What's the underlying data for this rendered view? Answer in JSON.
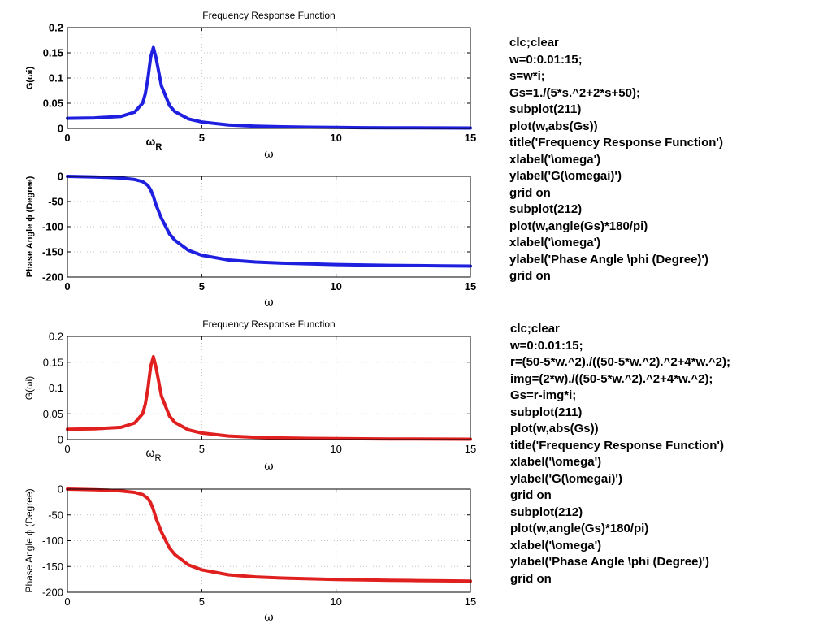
{
  "chart_data": [
    {
      "type": "line",
      "title": "Frequency Response Function",
      "xlabel": "ω",
      "ylabel": "G(ωi)",
      "xlim": [
        0,
        15
      ],
      "ylim": [
        0,
        0.2
      ],
      "xticks": [
        "0",
        "5",
        "10",
        "15"
      ],
      "yticks": [
        "0",
        "0.05",
        "0.1",
        "0.15",
        "0.2"
      ],
      "annotation": "ωR",
      "grid": true,
      "color": "#1f1fe0",
      "series": [
        {
          "x": [
            0,
            1,
            2,
            2.5,
            2.8,
            2.9,
            3.0,
            3.05,
            3.1,
            3.2,
            3.3,
            3.5,
            3.8,
            4.0,
            4.5,
            5,
            6,
            7,
            8,
            9,
            10,
            11,
            12,
            13,
            14,
            15
          ],
          "values": [
            0.02,
            0.0208,
            0.0238,
            0.0322,
            0.0501,
            0.0688,
            0.1,
            0.122,
            0.1413,
            0.1605,
            0.1398,
            0.0845,
            0.0453,
            0.0333,
            0.0189,
            0.0127,
            0.0069,
            0.0045,
            0.0032,
            0.0024,
            0.0019,
            0.0015,
            0.0013,
            0.0011,
            0.0009,
            0.0008
          ]
        }
      ]
    },
    {
      "type": "line",
      "title": "",
      "xlabel": "ω",
      "ylabel": "Phase Angle ϕ (Degree)",
      "xlim": [
        0,
        15
      ],
      "ylim": [
        -200,
        0
      ],
      "xticks": [
        "0",
        "5",
        "10",
        "15"
      ],
      "yticks": [
        "0",
        "-50",
        "-100",
        "-150",
        "-200"
      ],
      "grid": true,
      "color": "#1f1fe0",
      "series": [
        {
          "x": [
            0,
            0.5,
            1,
            1.5,
            2,
            2.5,
            2.8,
            3.0,
            3.1,
            3.2,
            3.3,
            3.5,
            3.8,
            4,
            4.5,
            5,
            6,
            7,
            8,
            9,
            10,
            11,
            12,
            13,
            14,
            15
          ],
          "values": [
            0,
            -0.6,
            -1.3,
            -2.1,
            -3.4,
            -6.3,
            -10.5,
            -18.4,
            -26.9,
            -39.8,
            -56.7,
            -83.2,
            -114.3,
            -126.9,
            -146.8,
            -156.6,
            -166.1,
            -170.2,
            -172.5,
            -173.9,
            -175.1,
            -175.9,
            -176.7,
            -177.3,
            -177.8,
            -178.2
          ]
        }
      ]
    },
    {
      "type": "line",
      "title": "Frequency Response Function",
      "xlabel": "ω",
      "ylabel": "G(ωi)",
      "xlim": [
        0,
        15
      ],
      "ylim": [
        0,
        0.2
      ],
      "xticks": [
        "0",
        "5",
        "10",
        "15"
      ],
      "yticks": [
        "0",
        "0.05",
        "0.1",
        "0.15",
        "0.2"
      ],
      "annotation": "ωR",
      "grid": true,
      "color": "#e01f1f",
      "series": [
        {
          "x": [
            0,
            1,
            2,
            2.5,
            2.8,
            2.9,
            3.0,
            3.05,
            3.1,
            3.2,
            3.3,
            3.5,
            3.8,
            4.0,
            4.5,
            5,
            6,
            7,
            8,
            9,
            10,
            11,
            12,
            13,
            14,
            15
          ],
          "values": [
            0.02,
            0.0208,
            0.0238,
            0.0322,
            0.0501,
            0.0688,
            0.1,
            0.122,
            0.1413,
            0.1605,
            0.1398,
            0.0845,
            0.0453,
            0.0333,
            0.0189,
            0.0127,
            0.0069,
            0.0045,
            0.0032,
            0.0024,
            0.0019,
            0.0015,
            0.0013,
            0.0011,
            0.0009,
            0.0008
          ]
        }
      ]
    },
    {
      "type": "line",
      "title": "",
      "xlabel": "ω",
      "ylabel": "Phase Angle ϕ (Degree)",
      "xlim": [
        0,
        15
      ],
      "ylim": [
        -200,
        0
      ],
      "xticks": [
        "0",
        "5",
        "10",
        "15"
      ],
      "yticks": [
        "0",
        "-50",
        "-100",
        "-150",
        "-200"
      ],
      "grid": true,
      "color": "#e01f1f",
      "series": [
        {
          "x": [
            0,
            0.5,
            1,
            1.5,
            2,
            2.5,
            2.8,
            3.0,
            3.1,
            3.2,
            3.3,
            3.5,
            3.8,
            4,
            4.5,
            5,
            6,
            7,
            8,
            9,
            10,
            11,
            12,
            13,
            14,
            15
          ],
          "values": [
            0,
            -0.6,
            -1.3,
            -2.1,
            -3.4,
            -6.3,
            -10.5,
            -18.4,
            -26.9,
            -39.8,
            -56.7,
            -83.2,
            -114.3,
            -126.9,
            -146.8,
            -156.6,
            -166.1,
            -170.2,
            -172.5,
            -173.9,
            -175.1,
            -175.9,
            -176.7,
            -177.3,
            -177.8,
            -178.2
          ]
        }
      ]
    }
  ],
  "code_blocks": [
    [
      "clc;clear",
      "w=0:0.01:15;",
      "s=w*i;",
      "Gs=1./(5*s.^2+2*s+50);",
      "subplot(211)",
      "plot(w,abs(Gs))",
      "title('Frequency Response Function')",
      "xlabel('\\omega')",
      "ylabel('G(\\omegai)')",
      "grid on",
      "subplot(212)",
      "plot(w,angle(Gs)*180/pi)",
      "xlabel('\\omega')",
      "ylabel('Phase Angle \\phi (Degree)')",
      "grid on"
    ],
    [
      "clc;clear",
      "w=0:0.01:15;",
      "r=(50-5*w.^2)./((50-5*w.^2).^2+4*w.^2);",
      "img=(2*w)./((50-5*w.^2).^2+4*w.^2);",
      "Gs=r-img*i;",
      "subplot(211)",
      "plot(w,abs(Gs))",
      "title('Frequency Response Function')",
      "xlabel('\\omega')",
      "ylabel('G(\\omegai)')",
      "grid on",
      "subplot(212)",
      "plot(w,angle(Gs)*180/pi)",
      "xlabel('\\omega')",
      "ylabel('Phase Angle \\phi (Degree)')",
      "grid on"
    ]
  ]
}
